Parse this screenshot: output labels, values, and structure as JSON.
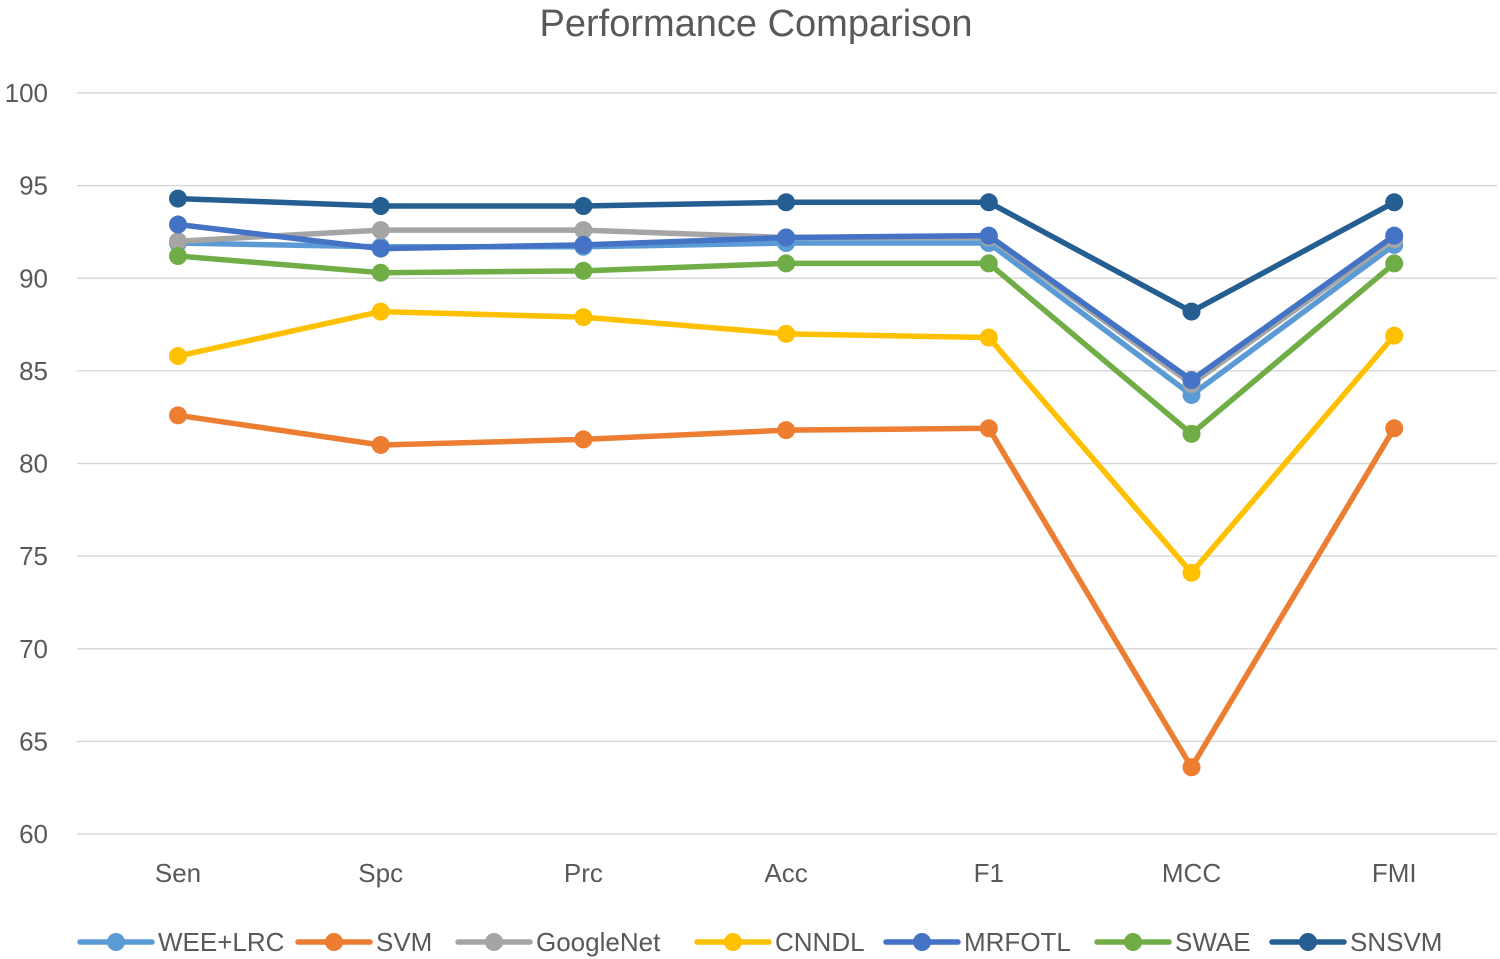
{
  "chart_data": {
    "type": "line",
    "title": "Performance Comparison",
    "xlabel": "",
    "ylabel": "",
    "categories": [
      "Sen",
      "Spc",
      "Prc",
      "Acc",
      "F1",
      "MCC",
      "FMI"
    ],
    "ylim": [
      60,
      100
    ],
    "yticks": [
      60,
      65,
      70,
      75,
      80,
      85,
      90,
      95,
      100
    ],
    "grid": true,
    "legend_position": "bottom",
    "series": [
      {
        "name": "WEE+LRC",
        "color": "#5B9BD5",
        "values": [
          91.9,
          91.7,
          91.7,
          91.9,
          91.9,
          83.7,
          91.8
        ]
      },
      {
        "name": "SVM",
        "color": "#ED7D31",
        "values": [
          82.6,
          81.0,
          81.3,
          81.8,
          81.9,
          63.6,
          81.9
        ]
      },
      {
        "name": "GoogleNet",
        "color": "#A5A5A5",
        "values": [
          92.0,
          92.6,
          92.6,
          92.2,
          92.2,
          84.3,
          92.1
        ]
      },
      {
        "name": "CNNDL",
        "color": "#FFC000",
        "values": [
          85.8,
          88.2,
          87.9,
          87.0,
          86.8,
          74.1,
          86.9
        ]
      },
      {
        "name": "MRFOTL",
        "color": "#4472C4",
        "values": [
          92.9,
          91.6,
          91.8,
          92.2,
          92.3,
          84.5,
          92.3
        ]
      },
      {
        "name": "SWAE",
        "color": "#70AD47",
        "values": [
          91.2,
          90.3,
          90.4,
          90.8,
          90.8,
          81.6,
          90.8
        ]
      },
      {
        "name": "SNSVM",
        "color": "#255E91",
        "values": [
          94.3,
          93.9,
          93.9,
          94.1,
          94.1,
          88.2,
          94.1
        ]
      }
    ]
  }
}
